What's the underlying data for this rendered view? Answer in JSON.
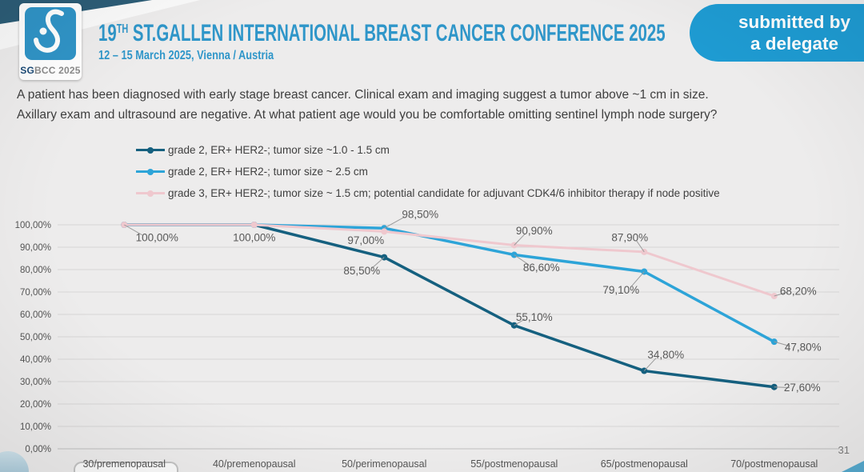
{
  "header": {
    "logo": {
      "sg": "SG",
      "bcc_year": "BCC 2025"
    },
    "title_19": "19",
    "title_sup": "TH",
    "title_rest": " ST.GALLEN INTERNATIONAL BREAST CANCER CONFERENCE 2025",
    "subtitle": "12 – 15 March 2025, Vienna / Austria",
    "badge_line1": "submitted by",
    "badge_line2": "a delegate"
  },
  "question": {
    "line1": "A patient has been diagnosed with early stage breast cancer.  Clinical exam and imaging suggest a tumor above ~1 cm in size.",
    "line2": "Axillary exam and ultrasound are negative.  At what patient age would you be comfortable omitting sentinel lymph node surgery?"
  },
  "page_number": "31",
  "colors": {
    "series1_dark_blue": "#15607f",
    "series2_cyan": "#2da4d8",
    "series3_pink": "#efc8ce",
    "title_blue": "#2f96c9",
    "badge_blue": "#1e9bd2",
    "corner_teal": "#2c5d77",
    "slide_background": "#edecec",
    "gridline": "#d7d6d6"
  },
  "chart_data": {
    "type": "line",
    "title": "",
    "xlabel": "",
    "ylabel": "",
    "ylim": [
      0,
      100
    ],
    "grid": true,
    "legend_position": "top-left",
    "categories": [
      "30/premenopausal",
      "40/premenopausal",
      "50/perimenopausal",
      "55/postmenopausal",
      "65/postmenopausal",
      "70/postmenopausal"
    ],
    "yticks": [
      {
        "v": 100,
        "label": "100,00%"
      },
      {
        "v": 90,
        "label": "90,00%"
      },
      {
        "v": 80,
        "label": "80,00%"
      },
      {
        "v": 70,
        "label": "70,00%"
      },
      {
        "v": 60,
        "label": "60,00%"
      },
      {
        "v": 50,
        "label": "50,00%"
      },
      {
        "v": 40,
        "label": "40,00%"
      },
      {
        "v": 30,
        "label": "30,00%"
      },
      {
        "v": 20,
        "label": "20,00%"
      },
      {
        "v": 10,
        "label": "10,00%"
      },
      {
        "v": 0,
        "label": "0,00%"
      }
    ],
    "series": [
      {
        "name": "grade 2, ER+ HER2-; tumor size ~1.0 - 1.5 cm",
        "color": "#15607f",
        "values": [
          100,
          100,
          85.5,
          55.1,
          34.8,
          27.6
        ],
        "point_labels": [
          "",
          "",
          "85,50%",
          "55,10%",
          "34,80%",
          "27,60%"
        ],
        "label_offsets": [
          [
            0,
            0
          ],
          [
            0,
            0
          ],
          [
            -28,
            17
          ],
          [
            25,
            -10
          ],
          [
            27,
            -20
          ],
          [
            35,
            1
          ]
        ],
        "label_leaders": [
          false,
          false,
          true,
          true,
          true,
          true
        ]
      },
      {
        "name": "grade 2, ER+ HER2-; tumor size ~ 2.5 cm",
        "color": "#2da4d8",
        "values": [
          100,
          100,
          98.5,
          86.6,
          79.1,
          47.8
        ],
        "point_labels": [
          "",
          "",
          "98,50%",
          "86,60%",
          "79,10%",
          "47,80%"
        ],
        "label_offsets": [
          [
            0,
            0
          ],
          [
            0,
            0
          ],
          [
            45,
            -17
          ],
          [
            34,
            16
          ],
          [
            -29,
            23
          ],
          [
            36,
            7
          ]
        ],
        "label_leaders": [
          false,
          false,
          true,
          true,
          true,
          true
        ]
      },
      {
        "name": "grade 3, ER+ HER2-; tumor size ~ 1.5 cm; potential candidate for adjuvant CDK4/6 inhibitor therapy if node positive",
        "color": "#efc8ce",
        "values": [
          100,
          100,
          97,
          90.9,
          87.9,
          68.2
        ],
        "point_labels": [
          "100,00%",
          "100,00%",
          "97,00%",
          "90,90%",
          "87,90%",
          "68,20%"
        ],
        "label_offsets": [
          [
            41,
            16
          ],
          [
            0,
            16
          ],
          [
            -23,
            11
          ],
          [
            25,
            -18
          ],
          [
            -18,
            -18
          ],
          [
            30,
            -6
          ]
        ],
        "label_leaders": [
          true,
          false,
          false,
          true,
          true,
          true
        ]
      }
    ]
  }
}
